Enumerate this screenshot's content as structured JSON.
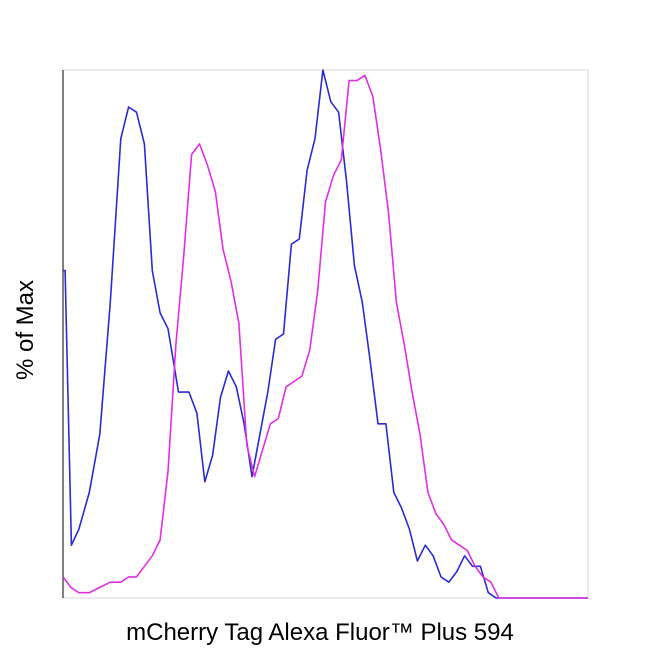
{
  "chart_data": {
    "type": "line",
    "title": "",
    "xlabel": "mCherry Tag Alexa Fluor™ Plus 594",
    "ylabel": "% of Max",
    "xlim": [
      0,
      100
    ],
    "ylim": [
      0,
      100
    ],
    "grid": false,
    "legend": "none",
    "x_ticks_shown": false,
    "y_ticks_shown": false,
    "series": [
      {
        "color": "#2b2bd0",
        "x": [
          0,
          0.4,
          1.6,
          3,
          5,
          7,
          9,
          11,
          12.5,
          14,
          15.5,
          17,
          18.5,
          20,
          22,
          24,
          25.5,
          27,
          28.5,
          30,
          31.5,
          33,
          34.5,
          36,
          37.5,
          39,
          40.5,
          42,
          43.5,
          45,
          46.5,
          48,
          49.5,
          51,
          52.5,
          54,
          55.5,
          57,
          58.5,
          60,
          61.5,
          63,
          64.5,
          66,
          67.5,
          69,
          70.5,
          72,
          73.5,
          75,
          76.5,
          78,
          79.5,
          81,
          82.5,
          84,
          85.5,
          87,
          88.5,
          90,
          91.5,
          93,
          95,
          97,
          100
        ],
        "y": [
          62,
          62,
          10,
          13,
          20,
          31,
          56,
          87,
          93,
          92,
          86,
          62,
          54,
          51,
          39,
          39,
          35,
          22,
          27,
          38,
          43,
          40,
          33,
          23,
          31,
          39,
          49,
          50,
          67,
          68,
          81,
          87,
          100,
          94,
          92,
          79,
          63,
          56,
          45,
          33,
          33,
          20,
          17,
          13,
          7,
          10,
          8,
          4,
          3,
          5,
          8,
          6,
          6,
          1,
          0,
          0,
          0,
          0,
          0,
          0,
          0,
          0,
          0,
          0,
          0
        ]
      },
      {
        "color": "#e030e0",
        "x": [
          0,
          1.5,
          3,
          5,
          7,
          9,
          11,
          12.5,
          14,
          15.5,
          17,
          18.5,
          20,
          21.5,
          23,
          24.5,
          26,
          27.5,
          29,
          30.5,
          32,
          33.5,
          35,
          36.5,
          38,
          39.5,
          41,
          42.5,
          44,
          45.5,
          47,
          48.5,
          50,
          51.5,
          53,
          54.5,
          56,
          57.5,
          59,
          60.5,
          62,
          63.5,
          65,
          66.5,
          68,
          69.5,
          71,
          72.5,
          74,
          75.5,
          77,
          78.5,
          80,
          81.5,
          83,
          84.5,
          86,
          87.5,
          89,
          90.5,
          92,
          94,
          96,
          98,
          100
        ],
        "y": [
          4,
          2,
          1,
          1,
          2,
          3,
          3,
          4,
          4,
          6,
          8,
          11,
          24,
          48,
          65,
          84,
          86,
          82,
          77,
          66,
          60,
          52,
          29,
          23,
          28,
          33,
          34,
          40,
          41,
          42,
          47,
          58,
          75,
          80,
          83,
          98,
          98,
          99,
          95,
          85,
          73,
          56,
          48,
          39,
          31,
          20,
          16,
          14,
          11,
          10,
          9,
          6,
          4,
          3,
          0,
          0,
          0,
          0,
          0,
          0,
          0,
          0,
          0,
          0,
          0
        ]
      }
    ]
  }
}
